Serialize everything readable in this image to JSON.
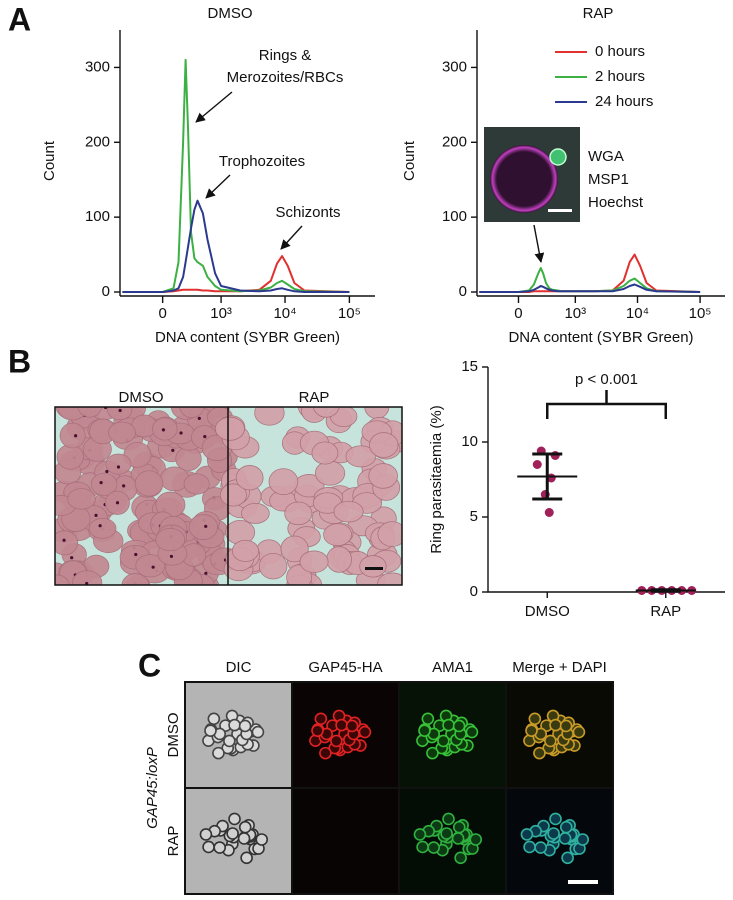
{
  "panel_labels": [
    "A",
    "B",
    "C"
  ],
  "chart_data": [
    {
      "type": "line",
      "title": "DMSO",
      "x_label": "DNA content (SYBR Green)",
      "y_label": "Count",
      "xscale": "logicle",
      "x": [
        -500,
        0,
        100,
        150,
        200,
        230,
        260,
        300,
        350,
        400,
        500,
        600,
        800,
        1000,
        2000,
        4000,
        6000,
        7500,
        9000,
        11000,
        14000,
        20000,
        100000
      ],
      "series": [
        {
          "color": "#e0302f",
          "values": [
            0,
            0,
            1,
            2,
            3,
            3,
            3,
            3,
            3,
            3,
            2,
            2,
            1,
            1,
            1,
            3,
            15,
            38,
            48,
            35,
            12,
            2,
            0
          ]
        },
        {
          "color": "#3cb043",
          "values": [
            0,
            0,
            5,
            40,
            200,
            310,
            220,
            80,
            45,
            40,
            35,
            20,
            8,
            3,
            1,
            2,
            6,
            12,
            15,
            10,
            4,
            1,
            0
          ]
        },
        {
          "color": "#2b3a8f",
          "values": [
            0,
            0,
            2,
            5,
            20,
            40,
            60,
            85,
            110,
            122,
            105,
            70,
            25,
            8,
            2,
            1,
            2,
            4,
            5,
            3,
            1,
            0,
            0
          ]
        }
      ],
      "xlim": [
        -550,
        250000
      ],
      "ylim": [
        0,
        350
      ],
      "xticks": [
        0,
        {
          "value": 1000,
          "label": "10³"
        },
        {
          "value": 10000,
          "label": "10⁴"
        },
        {
          "value": 100000,
          "label": "10⁵"
        }
      ],
      "yticks": [
        0,
        100,
        200,
        300
      ],
      "annotations": [
        {
          "text": [
            "Rings &",
            "Merozoites/RBCs"
          ]
        },
        {
          "text": [
            "Trophozoites"
          ]
        },
        {
          "text": [
            "Schizonts"
          ]
        }
      ]
    },
    {
      "type": "line",
      "title": "RAP",
      "x_label": "DNA content (SYBR Green)",
      "y_label": "Count",
      "xscale": "logicle",
      "x": [
        -500,
        0,
        100,
        150,
        200,
        230,
        260,
        300,
        350,
        400,
        500,
        600,
        800,
        1000,
        2000,
        4000,
        6000,
        7500,
        9000,
        11000,
        14000,
        20000,
        100000
      ],
      "series": [
        {
          "name": "0 hours",
          "color": "#e0302f",
          "values": [
            0,
            0,
            0,
            1,
            1,
            1,
            1,
            1,
            1,
            1,
            1,
            1,
            1,
            1,
            1,
            2,
            15,
            40,
            50,
            35,
            12,
            2,
            0
          ]
        },
        {
          "name": "2 hours",
          "color": "#3cb043",
          "values": [
            0,
            0,
            2,
            10,
            25,
            32,
            25,
            12,
            5,
            3,
            2,
            1,
            1,
            1,
            1,
            2,
            8,
            15,
            18,
            12,
            5,
            1,
            0
          ]
        },
        {
          "name": "24 hours",
          "color": "#2b3a8f",
          "values": [
            0,
            0,
            1,
            3,
            6,
            8,
            7,
            5,
            3,
            2,
            1,
            1,
            1,
            1,
            1,
            1,
            4,
            8,
            10,
            7,
            3,
            1,
            0
          ]
        }
      ],
      "xlim": [
        -550,
        250000
      ],
      "ylim": [
        0,
        350
      ],
      "xticks": [
        0,
        {
          "value": 1000,
          "label": "10³"
        },
        {
          "value": 10000,
          "label": "10⁴"
        },
        {
          "value": 100000,
          "label": "10⁵"
        }
      ],
      "yticks": [
        0,
        100,
        200,
        300
      ],
      "legend": "top-right",
      "inset": {
        "labels": [
          {
            "text": "WGA",
            "color": "#8b3a9b"
          },
          {
            "text": "MSP1",
            "color": "#3aa040"
          },
          {
            "text": "Hoechst",
            "color": "#2a9fd8"
          }
        ]
      }
    },
    {
      "type": "dot",
      "y_label": "Ring parasitaemia (%)",
      "categories": [
        "DMSO",
        "RAP"
      ],
      "color": "#a0205a",
      "values": [
        [
          9.4,
          9.1,
          8.5,
          7.6,
          6.5,
          5.3
        ],
        [
          0.1,
          0.1,
          0.1,
          0.1,
          0.1,
          0.1
        ]
      ],
      "mean": [
        7.7,
        0.1
      ],
      "sd": [
        1.5,
        0.05
      ],
      "ylim": [
        0,
        15
      ],
      "yticks": [
        0,
        5,
        10,
        15
      ],
      "annotation": "p < 0.001"
    }
  ],
  "micrograph": {
    "labels": [
      "DMSO",
      "RAP"
    ]
  },
  "panel_c": {
    "columns": [
      "DIC",
      "GAP45-HA",
      "AMA1",
      "Merge + DAPI"
    ],
    "rows": [
      "DMSO",
      "RAP"
    ],
    "row_group": "GAP45:loxP"
  }
}
